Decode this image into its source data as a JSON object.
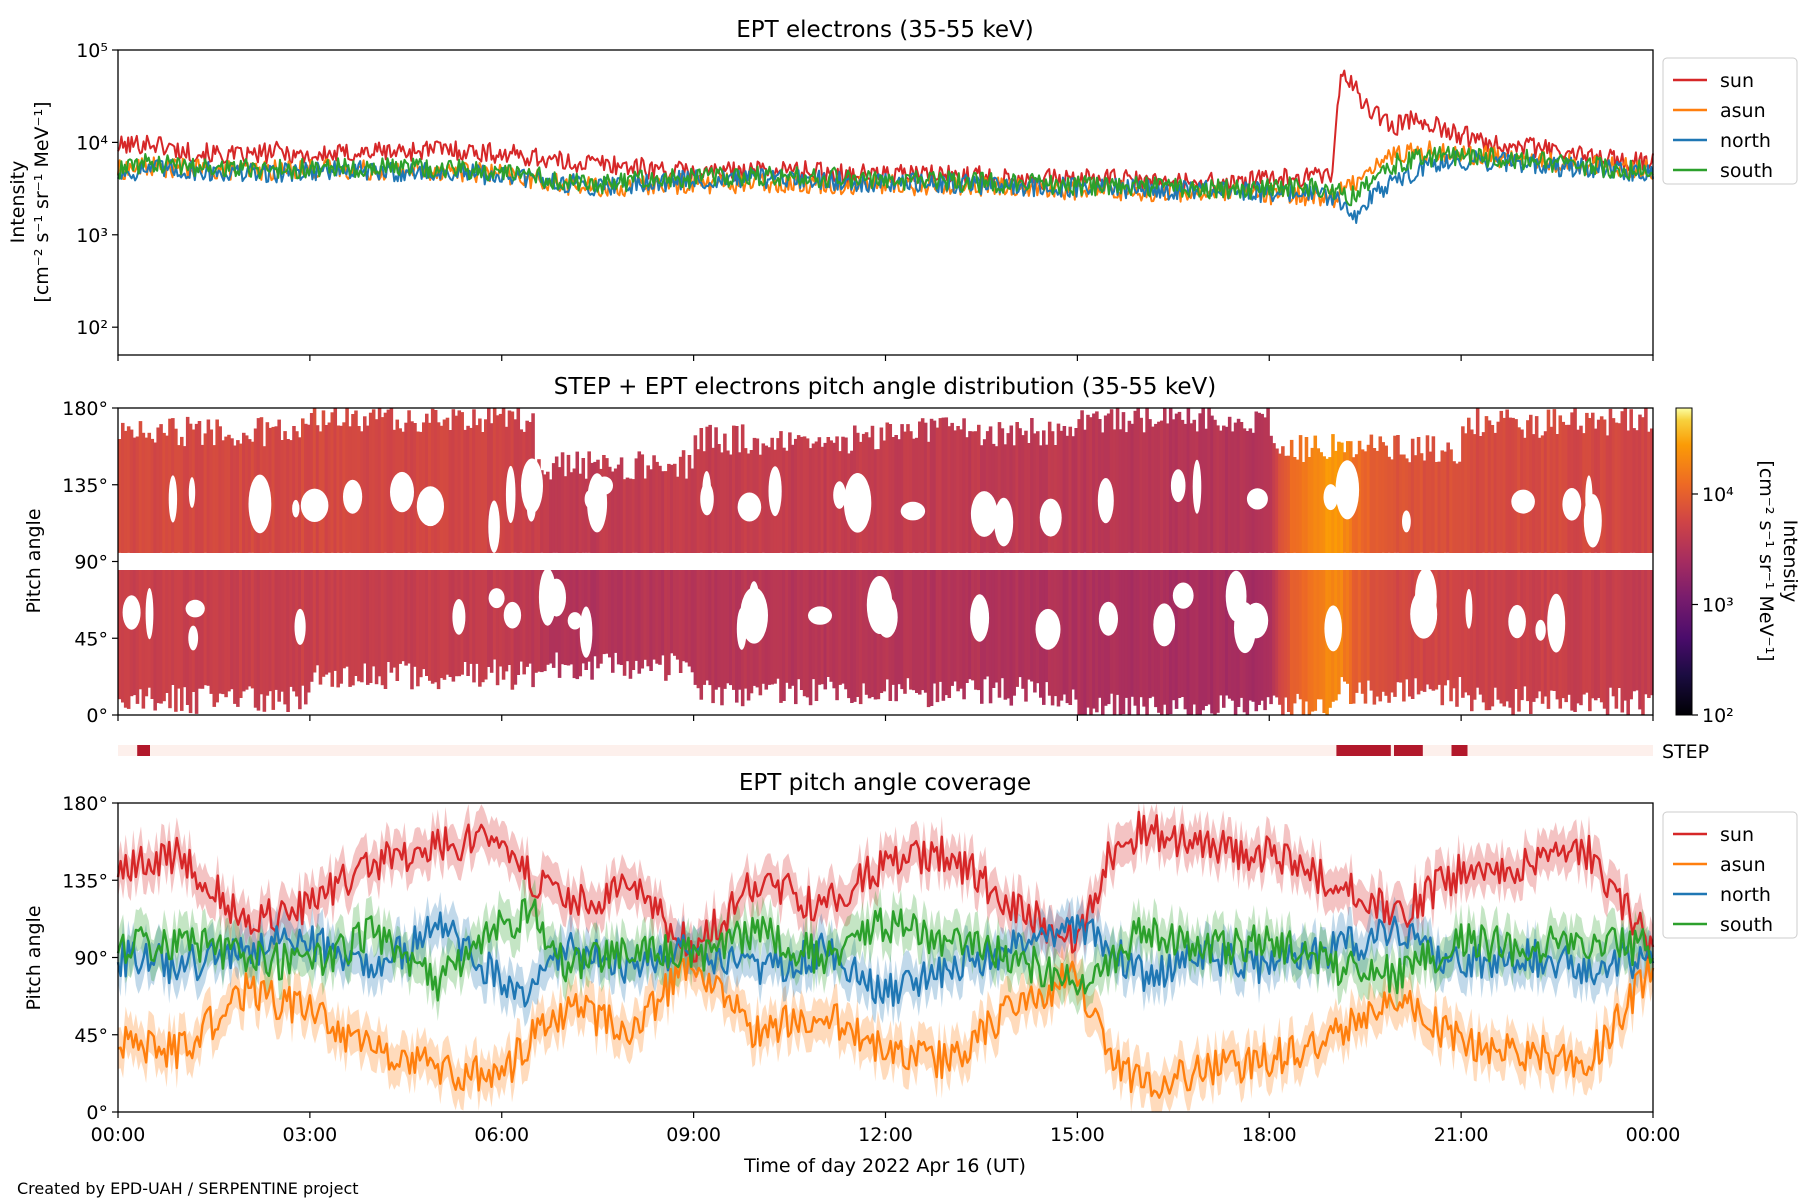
{
  "chart_data": [
    {
      "type": "line",
      "title": "EPT electrons (35-55 keV)",
      "ylabel_line1": "Intensity",
      "ylabel_line2": "[cm⁻² s⁻¹ sr⁻¹ MeV⁻¹]",
      "yscale": "log",
      "ylim": [
        50,
        100000
      ],
      "yticks": [
        {
          "value": 100,
          "label": "10²"
        },
        {
          "value": 1000,
          "label": "10³"
        },
        {
          "value": 10000,
          "label": "10⁴"
        },
        {
          "value": 100000,
          "label": "10⁵"
        }
      ],
      "xlim_hours": [
        0,
        24
      ],
      "legend_position": "upper right, outside",
      "series": [
        {
          "name": "sun",
          "color": "#d62728",
          "x": [
            0,
            0.5,
            1,
            1.5,
            2,
            2.5,
            3,
            3.5,
            4,
            4.5,
            5,
            5.5,
            6,
            6.5,
            7,
            7.5,
            8,
            8.5,
            9,
            9.5,
            10,
            10.5,
            11,
            11.5,
            12,
            12.5,
            13,
            13.5,
            14,
            14.5,
            15,
            15.5,
            16,
            16.5,
            17,
            17.5,
            18,
            18.5,
            19,
            19.05,
            19.15,
            19.3,
            19.5,
            19.8,
            20,
            20.3,
            20.6,
            21,
            21.5,
            22,
            22.5,
            23,
            23.5,
            24
          ],
          "y": [
            9000,
            10000,
            8000,
            7500,
            7000,
            8000,
            7000,
            7500,
            8000,
            8000,
            8500,
            8000,
            7500,
            7000,
            6000,
            6000,
            5500,
            5000,
            4800,
            4800,
            5000,
            5000,
            4800,
            4600,
            4500,
            4500,
            4400,
            4300,
            4200,
            4000,
            4000,
            4000,
            3800,
            3700,
            3700,
            3600,
            4000,
            4200,
            4400,
            20000,
            60000,
            40000,
            25000,
            17000,
            15000,
            19000,
            15000,
            12000,
            10000,
            9000,
            8000,
            7000,
            6500,
            6000
          ]
        },
        {
          "name": "asun",
          "color": "#ff7f0e",
          "x": [
            0,
            0.5,
            1,
            1.5,
            2,
            2.5,
            3,
            3.5,
            4,
            4.5,
            5,
            5.5,
            6,
            6.5,
            7,
            7.5,
            8,
            8.5,
            9,
            9.5,
            10,
            10.5,
            11,
            11.5,
            12,
            12.5,
            13,
            13.5,
            14,
            14.5,
            15,
            15.5,
            16,
            16.5,
            17,
            17.5,
            18,
            18.5,
            19,
            19.3,
            19.6,
            20,
            20.5,
            21,
            21.5,
            22,
            22.5,
            23,
            23.5,
            24
          ],
          "y": [
            5000,
            5500,
            5200,
            5000,
            5000,
            5000,
            5200,
            5200,
            5000,
            5000,
            5000,
            4800,
            4500,
            4000,
            3500,
            3200,
            3300,
            3500,
            3600,
            3600,
            3700,
            3700,
            3600,
            3500,
            3500,
            3400,
            3400,
            3300,
            3300,
            3200,
            3000,
            3000,
            3000,
            2900,
            2900,
            2800,
            2700,
            2700,
            2500,
            3500,
            5500,
            7500,
            8000,
            7500,
            7000,
            6500,
            6000,
            5800,
            5500,
            5000
          ]
        },
        {
          "name": "north",
          "color": "#1f77b4",
          "x": [
            0,
            0.5,
            1,
            1.5,
            2,
            2.5,
            3,
            3.5,
            4,
            4.5,
            5,
            5.5,
            6,
            6.5,
            7,
            7.5,
            8,
            8.5,
            9,
            9.5,
            10,
            10.5,
            11,
            11.5,
            12,
            12.5,
            13,
            13.5,
            14,
            14.5,
            15,
            15.5,
            16,
            16.5,
            17,
            17.5,
            18,
            18.5,
            19,
            19.3,
            19.6,
            20,
            20.5,
            21,
            21.5,
            22,
            22.5,
            23,
            23.5,
            24
          ],
          "y": [
            4500,
            5200,
            5000,
            4800,
            4600,
            4700,
            5000,
            5000,
            4800,
            4800,
            4700,
            4600,
            4300,
            4000,
            3600,
            3400,
            3600,
            3800,
            3900,
            3900,
            4000,
            4000,
            3900,
            3800,
            3700,
            3600,
            3600,
            3500,
            3400,
            3300,
            3200,
            3200,
            3100,
            3000,
            3000,
            2900,
            2900,
            2900,
            2600,
            1500,
            2500,
            4000,
            5500,
            6500,
            6200,
            6000,
            5500,
            5200,
            5000,
            4800
          ]
        },
        {
          "name": "south",
          "color": "#2ca02c",
          "x": [
            0,
            0.5,
            1,
            1.5,
            2,
            2.5,
            3,
            3.5,
            4,
            4.5,
            5,
            5.5,
            6,
            6.5,
            7,
            7.5,
            8,
            8.5,
            9,
            9.5,
            10,
            10.5,
            11,
            11.5,
            12,
            12.5,
            13,
            13.5,
            14,
            14.5,
            15,
            15.5,
            16,
            16.5,
            17,
            17.5,
            18,
            18.5,
            19,
            19.3,
            19.6,
            20,
            20.5,
            21,
            21.5,
            22,
            22.5,
            23,
            23.5,
            24
          ],
          "y": [
            5000,
            6000,
            5500,
            5500,
            5200,
            5200,
            5200,
            5500,
            5300,
            5300,
            5300,
            5000,
            4700,
            4300,
            3800,
            3500,
            3800,
            4000,
            4100,
            4200,
            4300,
            4300,
            4200,
            4100,
            4000,
            3900,
            3800,
            3700,
            3600,
            3500,
            3400,
            3400,
            3300,
            3200,
            3200,
            3100,
            3200,
            3300,
            3000,
            2600,
            4000,
            6000,
            7000,
            7000,
            6800,
            6500,
            6000,
            5500,
            5200,
            5000
          ]
        }
      ]
    },
    {
      "type": "heatmap",
      "title": "STEP + EPT electrons pitch angle distribution (35-55 keV)",
      "ylabel": "Pitch angle",
      "yticks": [
        "0°",
        "45°",
        "90°",
        "135°",
        "180°"
      ],
      "xlim_hours": [
        0,
        24
      ],
      "colorbar": {
        "label_line1": "Intensity",
        "label_line2": "[cm⁻² s⁻¹ sr⁻¹ MeV⁻¹]",
        "scale": "log",
        "range": [
          100,
          60000
        ],
        "ticks": [
          {
            "value": 100,
            "label": "10²"
          },
          {
            "value": 1000,
            "label": "10³"
          },
          {
            "value": 10000,
            "label": "10⁴"
          }
        ],
        "colormap": "inferno"
      },
      "intensity_profile": {
        "x": [
          0,
          3,
          6,
          7,
          9,
          12,
          15,
          18,
          19.05,
          19.3,
          19.8,
          21,
          24
        ],
        "y": [
          5500,
          5500,
          5000,
          3500,
          4000,
          3800,
          3300,
          2800,
          25000,
          12000,
          7000,
          6000,
          5000
        ]
      },
      "coverage_bands": [
        {
          "start": 0,
          "end": 3,
          "low": 5,
          "high": 170
        },
        {
          "start": 3,
          "end": 6.5,
          "low": 20,
          "high": 178
        },
        {
          "start": 6.5,
          "end": 9,
          "low": 25,
          "high": 150
        },
        {
          "start": 9,
          "end": 12,
          "low": 10,
          "high": 165
        },
        {
          "start": 12,
          "end": 15,
          "low": 10,
          "high": 170
        },
        {
          "start": 15,
          "end": 18,
          "low": 0,
          "high": 178
        },
        {
          "start": 18,
          "end": 19,
          "low": 0,
          "high": 160
        },
        {
          "start": 19,
          "end": 21,
          "low": 10,
          "high": 160
        },
        {
          "start": 21,
          "end": 24,
          "low": 5,
          "high": 175
        }
      ]
    },
    {
      "type": "timeline",
      "label": "STEP",
      "background_color": "#fdf0ec",
      "bar_color": "#b2182b",
      "intervals": [
        [
          0.3,
          0.5
        ],
        [
          19.05,
          19.9
        ],
        [
          19.95,
          20.4
        ],
        [
          20.85,
          21.1
        ]
      ]
    },
    {
      "type": "line",
      "title": "EPT pitch angle coverage",
      "ylabel": "Pitch angle",
      "xlabel": "Time of day 2022 Apr 16 (UT)",
      "yticks": [
        "0°",
        "45°",
        "90°",
        "135°",
        "180°"
      ],
      "ylim": [
        0,
        180
      ],
      "xlim_hours": [
        0,
        24
      ],
      "xticks": [
        "00:00",
        "03:00",
        "06:00",
        "09:00",
        "12:00",
        "15:00",
        "18:00",
        "21:00",
        "00:00"
      ],
      "legend_position": "upper right, outside",
      "band_halfwidth_deg": 12,
      "series": [
        {
          "name": "sun",
          "color": "#d62728",
          "x": [
            0,
            1,
            2,
            3,
            4,
            5,
            6,
            6.5,
            7,
            8,
            9,
            10,
            11,
            12,
            13,
            14,
            15,
            15.5,
            16,
            17,
            18,
            19,
            20,
            21,
            22,
            23,
            24
          ],
          "y": [
            140,
            150,
            110,
            120,
            145,
            155,
            160,
            135,
            120,
            130,
            95,
            135,
            120,
            145,
            150,
            120,
            100,
            150,
            165,
            155,
            150,
            135,
            115,
            140,
            145,
            150,
            95
          ]
        },
        {
          "name": "asun",
          "color": "#ff7f0e",
          "x": [
            0,
            1,
            2,
            3,
            4,
            5,
            6,
            6.5,
            7,
            8,
            9,
            10,
            11,
            12,
            13,
            14,
            15,
            15.5,
            16,
            17,
            18,
            19,
            20,
            21,
            22,
            23,
            24
          ],
          "y": [
            40,
            35,
            70,
            60,
            35,
            25,
            20,
            45,
            60,
            50,
            85,
            45,
            60,
            35,
            30,
            60,
            80,
            30,
            15,
            25,
            30,
            45,
            65,
            40,
            35,
            30,
            85
          ]
        },
        {
          "name": "north",
          "color": "#1f77b4",
          "x": [
            0,
            1,
            2,
            3,
            4,
            5,
            6,
            6.5,
            7,
            8,
            9,
            10,
            11,
            12,
            13,
            14,
            15,
            15.5,
            16,
            17,
            18,
            19,
            20,
            21,
            22,
            23,
            24
          ],
          "y": [
            90,
            85,
            95,
            100,
            80,
            110,
            75,
            70,
            95,
            85,
            95,
            80,
            95,
            70,
            85,
            95,
            110,
            95,
            80,
            90,
            85,
            95,
            105,
            85,
            90,
            85,
            90
          ]
        },
        {
          "name": "south",
          "color": "#2ca02c",
          "x": [
            0,
            1,
            2,
            3,
            4,
            5,
            6,
            6.5,
            7,
            8,
            9,
            10,
            11,
            12,
            13,
            14,
            15,
            15.5,
            16,
            17,
            18,
            19,
            20,
            21,
            22,
            23,
            24
          ],
          "y": [
            95,
            100,
            90,
            85,
            105,
            75,
            110,
            115,
            85,
            95,
            90,
            105,
            90,
            110,
            100,
            90,
            75,
            85,
            105,
            95,
            100,
            85,
            80,
            100,
            95,
            100,
            95
          ]
        }
      ]
    }
  ],
  "footer": {
    "credit": "Created by EPD-UAH / SERPENTINE project"
  }
}
